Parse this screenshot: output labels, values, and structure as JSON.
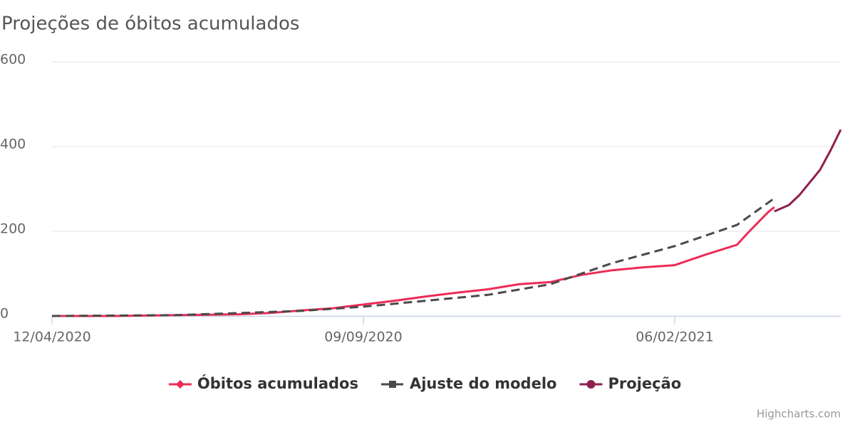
{
  "chart_data": {
    "type": "line",
    "title": "Projeções de óbitos acumulados",
    "credits": "Highcharts.com",
    "xlim": [
      "12/04/2020",
      "27/04/2021"
    ],
    "xticks": [
      "12/04/2020",
      "09/09/2020",
      "06/02/2021"
    ],
    "ylim": [
      0,
      600
    ],
    "yticks": [
      0,
      200,
      400,
      600
    ],
    "grid": true,
    "series": [
      {
        "name": "Óbitos acumulados",
        "color": "#ee2b57",
        "marker": "diamond",
        "x": [
          "12/04/2020",
          "27/04/2020",
          "12/05/2020",
          "27/05/2020",
          "11/06/2020",
          "26/06/2020",
          "11/07/2020",
          "26/07/2020",
          "10/08/2020",
          "25/08/2020",
          "09/09/2020",
          "24/09/2020",
          "09/10/2020",
          "24/10/2020",
          "08/11/2020",
          "23/11/2020",
          "08/12/2020",
          "23/12/2020",
          "07/01/2021",
          "22/01/2021",
          "06/02/2021",
          "21/02/2021",
          "08/03/2021",
          "13/03/2021",
          "16/03/2021",
          "23/03/2021",
          "26/03/2021"
        ],
        "values": [
          0,
          0,
          0,
          1,
          2,
          3,
          4,
          7,
          13,
          18,
          27,
          36,
          46,
          55,
          63,
          75,
          80,
          97,
          108,
          115,
          120,
          145,
          168,
          195,
          210,
          245,
          257
        ]
      },
      {
        "name": "Ajuste do modelo",
        "color": "#4a4a4a",
        "marker": "square",
        "dash": true,
        "x": [
          "12/04/2020",
          "11/06/2020",
          "10/08/2020",
          "09/09/2020",
          "08/11/2020",
          "08/12/2020",
          "23/12/2020",
          "07/01/2021",
          "06/02/2021",
          "08/03/2021",
          "26/03/2021"
        ],
        "values": [
          0,
          2,
          12,
          22,
          50,
          75,
          100,
          125,
          165,
          215,
          278
        ]
      },
      {
        "name": "Projeção",
        "color": "#8e1f4f",
        "marker": "circle",
        "x": [
          "26/03/2021",
          "02/04/2021",
          "07/04/2021",
          "12/04/2021",
          "17/04/2021",
          "22/04/2021",
          "27/04/2021"
        ],
        "values": [
          247,
          262,
          285,
          315,
          345,
          390,
          440
        ]
      }
    ]
  }
}
